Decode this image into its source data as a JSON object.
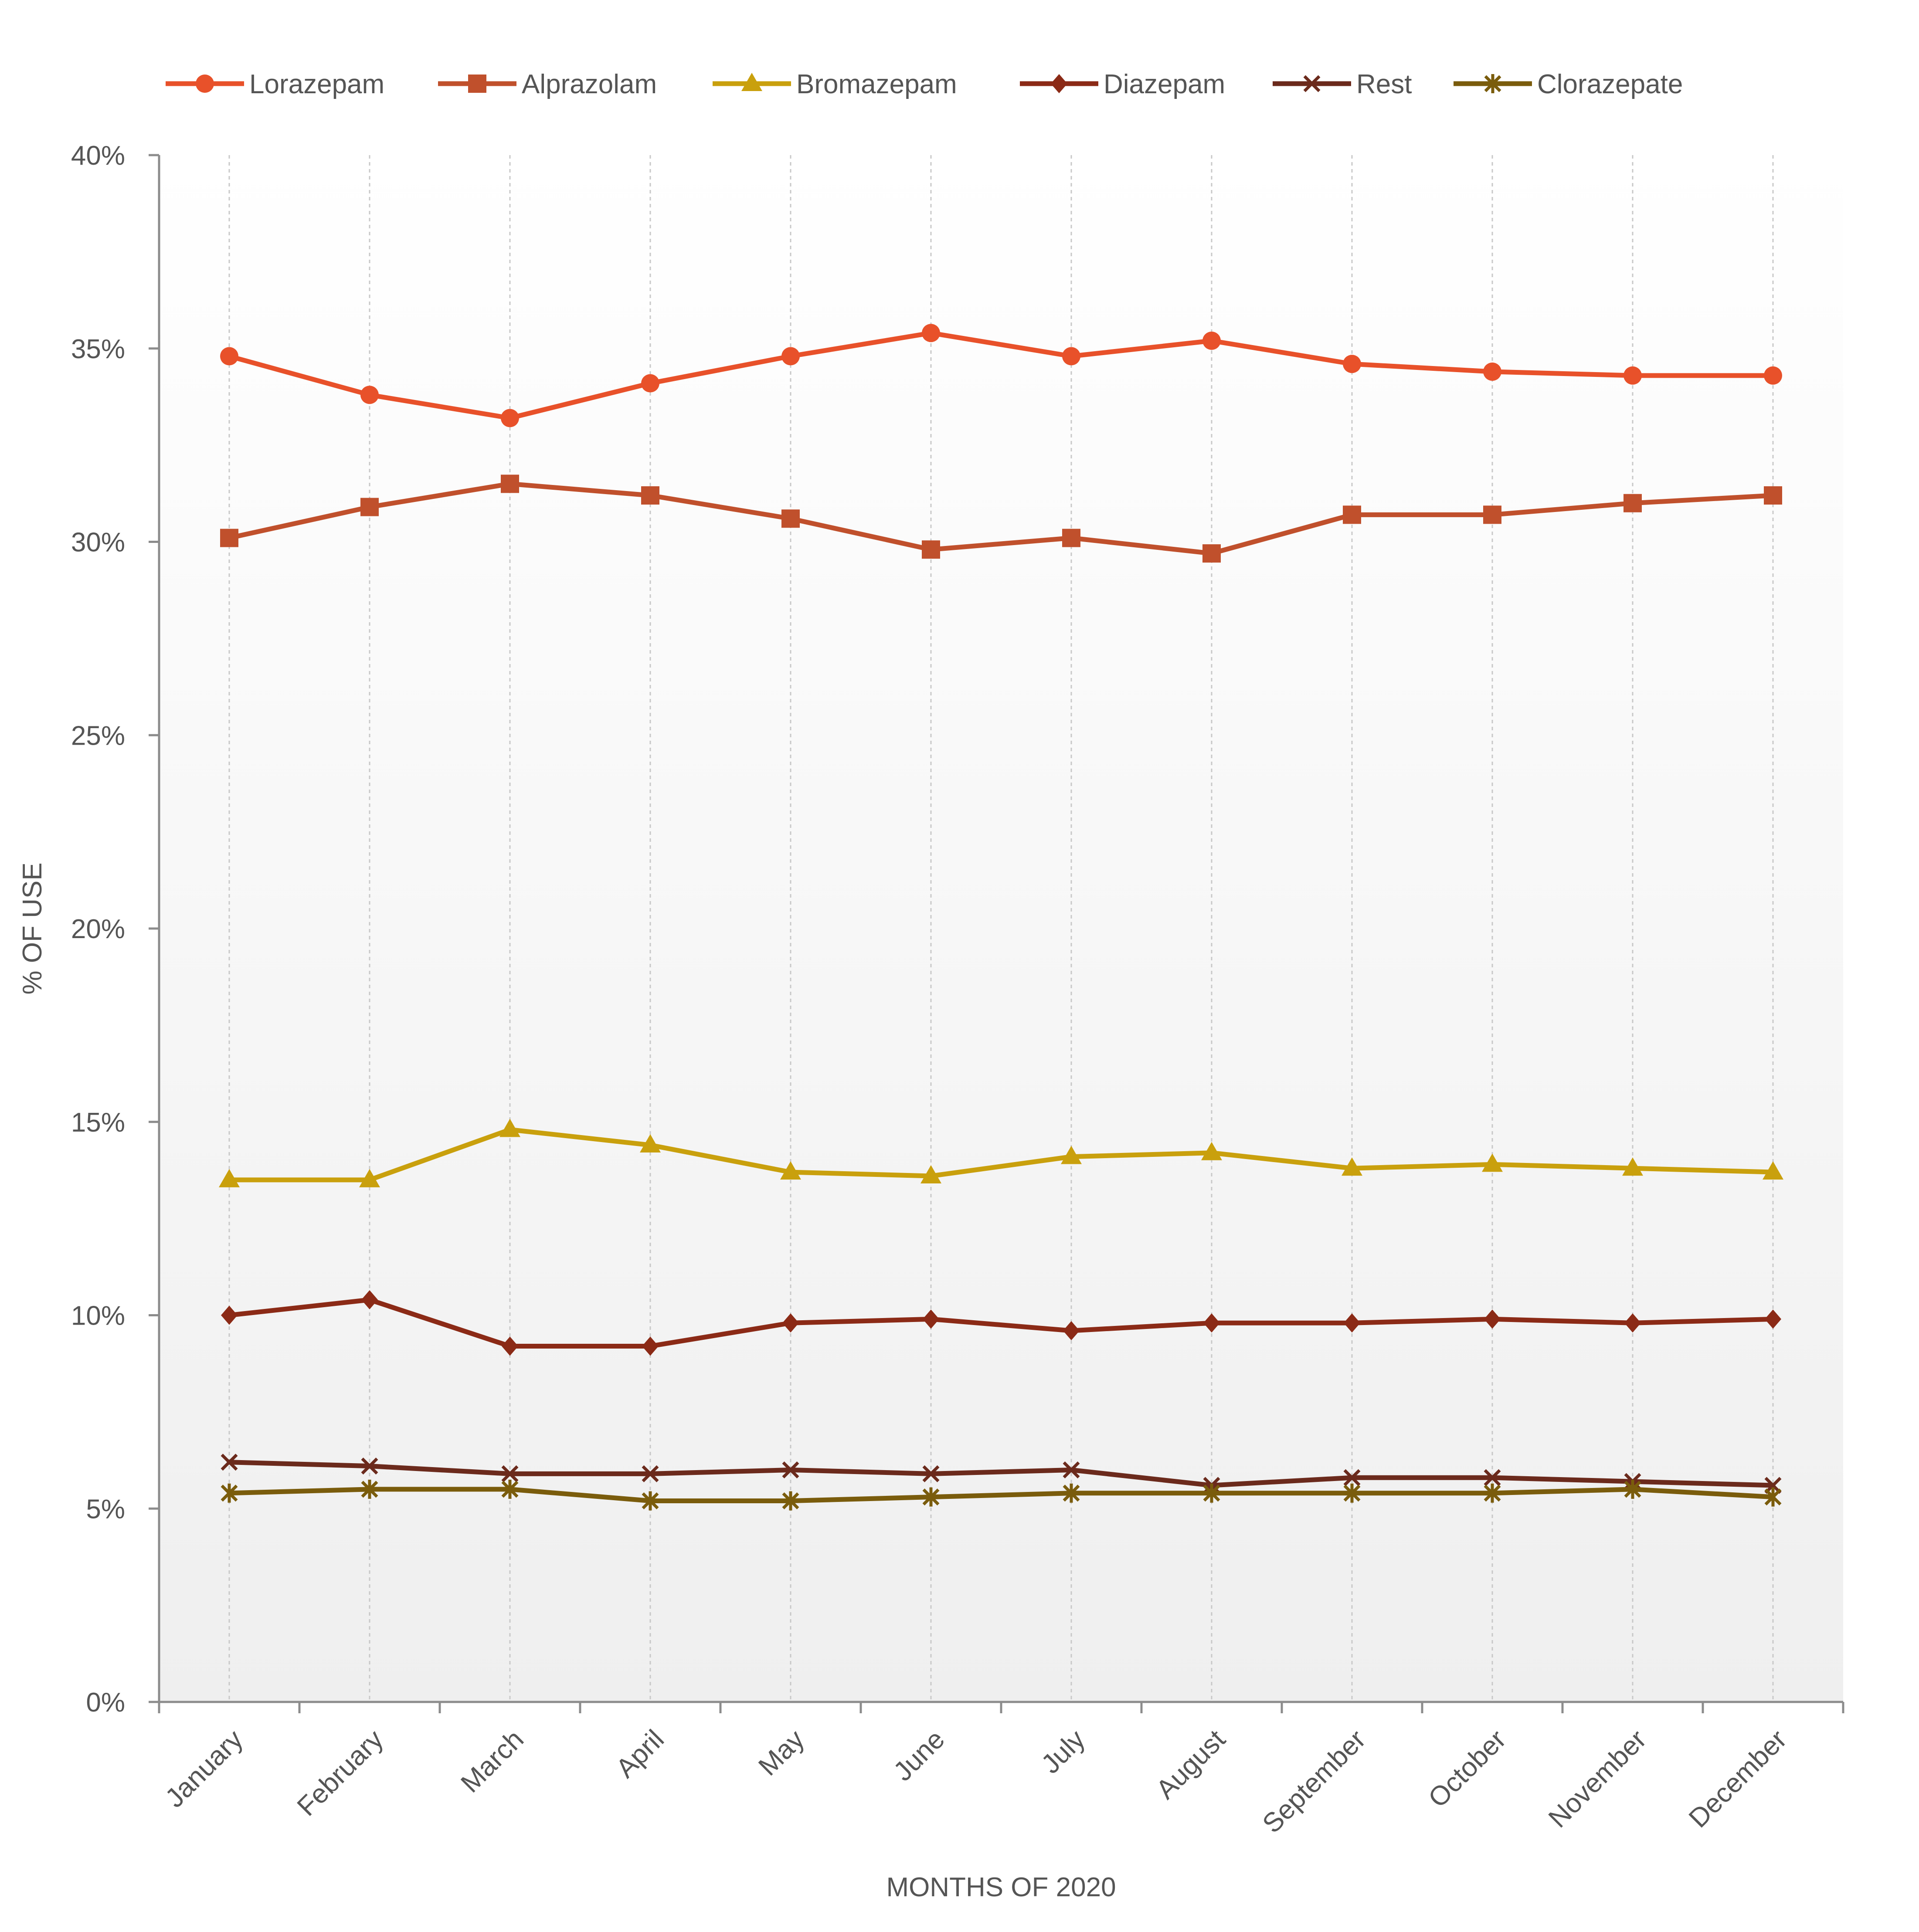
{
  "chart_data": {
    "type": "line",
    "title": "",
    "xlabel": "MONTHS OF 2020",
    "ylabel": "% OF USE",
    "ylim": [
      0,
      40
    ],
    "y_ticks": [
      0,
      5,
      10,
      15,
      20,
      25,
      30,
      35,
      40
    ],
    "y_tick_labels": [
      "0%",
      "5%",
      "10%",
      "15%",
      "20%",
      "25%",
      "30%",
      "35%",
      "40%"
    ],
    "legend_position": "top",
    "grid": "vertical-dashed",
    "categories": [
      "January",
      "February",
      "March",
      "April",
      "May",
      "June",
      "July",
      "August",
      "September",
      "October",
      "November",
      "December"
    ],
    "series": [
      {
        "name": "Lorazepam",
        "marker": "circle",
        "color": "#e8512a",
        "values": [
          34.8,
          33.8,
          33.2,
          34.1,
          34.8,
          35.4,
          34.8,
          35.2,
          34.6,
          34.4,
          34.3,
          34.3
        ]
      },
      {
        "name": "Alprazolam",
        "marker": "square",
        "color": "#c0502c",
        "values": [
          30.1,
          30.9,
          31.5,
          31.2,
          30.6,
          29.8,
          30.1,
          29.7,
          30.7,
          30.7,
          31.0,
          31.2
        ]
      },
      {
        "name": "Bromazepam",
        "marker": "triangle",
        "color": "#c9a00d",
        "values": [
          13.5,
          13.5,
          14.8,
          14.4,
          13.7,
          13.6,
          14.1,
          14.2,
          13.8,
          13.9,
          13.8,
          13.7
        ]
      },
      {
        "name": "Diazepam",
        "marker": "diamond",
        "color": "#8b2a16",
        "values": [
          10.0,
          10.4,
          9.2,
          9.2,
          9.8,
          9.9,
          9.6,
          9.8,
          9.8,
          9.9,
          9.8,
          9.9
        ]
      },
      {
        "name": "Rest",
        "marker": "x",
        "color": "#6b2a1c",
        "values": [
          6.2,
          6.1,
          5.9,
          5.9,
          6.0,
          5.9,
          6.0,
          5.6,
          5.8,
          5.8,
          5.7,
          5.6
        ]
      },
      {
        "name": "Clorazepate",
        "marker": "star",
        "color": "#7a5c0c",
        "values": [
          5.4,
          5.5,
          5.5,
          5.2,
          5.2,
          5.3,
          5.4,
          5.4,
          5.4,
          5.4,
          5.5,
          5.3
        ]
      }
    ]
  }
}
